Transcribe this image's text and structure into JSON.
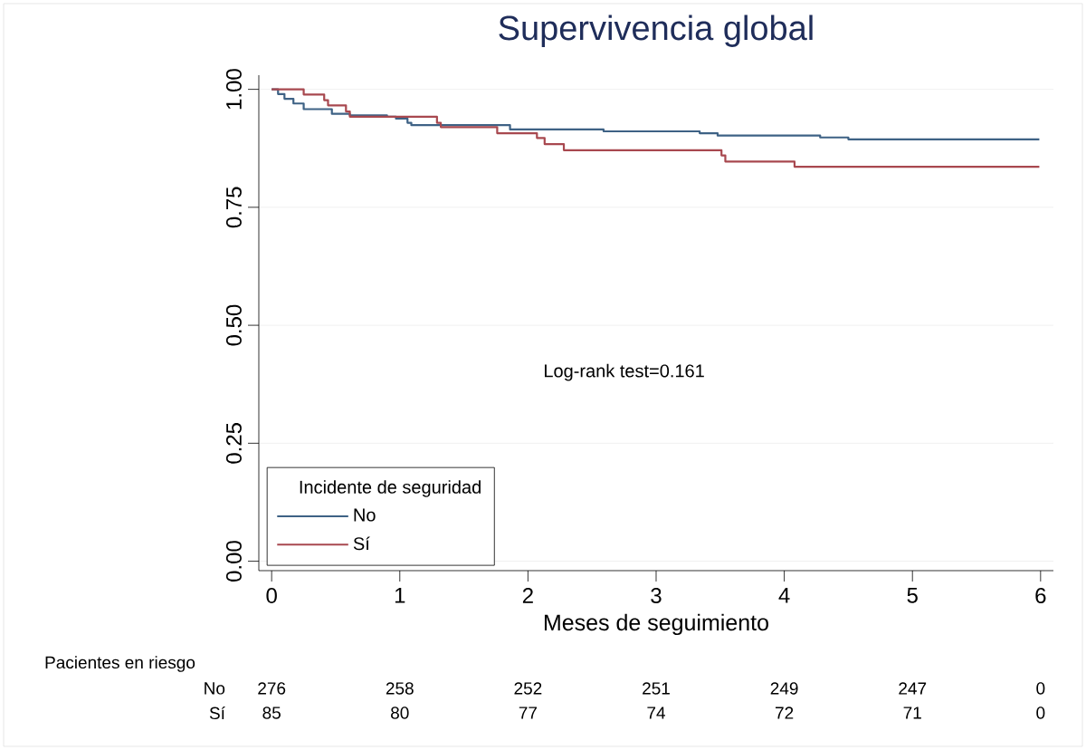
{
  "chart_data": {
    "type": "step",
    "title": "Supervivencia global",
    "xlabel": "Meses de seguimiento",
    "legend_title": "Incidente de seguridad",
    "xlim": [
      -0.1,
      6.1
    ],
    "xticks": [
      0,
      1,
      2,
      3,
      4,
      5,
      6
    ],
    "ylim": [
      -0.02,
      1.03
    ],
    "yticks": [
      {
        "value": 0,
        "label": "0.00"
      },
      0.25,
      {
        "value": 0.5,
        "label": "0.50"
      },
      0.75,
      {
        "value": 1,
        "label": "1.00"
      }
    ],
    "grid": "y",
    "legend": "bottom left",
    "series": [
      {
        "name": "No",
        "color": "#3e6285",
        "x": [
          0,
          0.05,
          0.1,
          0.17,
          0.25,
          0.47,
          0.61,
          0.9,
          0.97,
          1.06,
          1.09,
          1.86,
          2.59,
          3.34,
          3.48,
          4.28,
          4.5,
          5.99
        ],
        "values": [
          1.0,
          0.99,
          0.98,
          0.97,
          0.958,
          0.948,
          0.945,
          0.942,
          0.938,
          0.929,
          0.924,
          0.915,
          0.911,
          0.907,
          0.902,
          0.898,
          0.894,
          0.894
        ]
      },
      {
        "name": "Sí",
        "color": "#a8484f",
        "x": [
          0,
          0.25,
          0.41,
          0.44,
          0.58,
          0.61,
          1.29,
          1.32,
          1.76,
          2.07,
          2.13,
          2.28,
          3.51,
          3.54,
          4.08,
          5.99
        ],
        "values": [
          1.0,
          0.989,
          0.977,
          0.966,
          0.953,
          0.942,
          0.929,
          0.92,
          0.907,
          0.897,
          0.884,
          0.871,
          0.86,
          0.847,
          0.836,
          0.836
        ]
      }
    ],
    "annotations": [
      "Log-rank test=0.161",
      "Pacientes en riesgo",
      "No",
      "276",
      "258",
      "252",
      "251",
      "249",
      "247",
      "0",
      "Sí",
      "85",
      "80",
      "77",
      "74",
      "72",
      "71",
      "0"
    ]
  }
}
